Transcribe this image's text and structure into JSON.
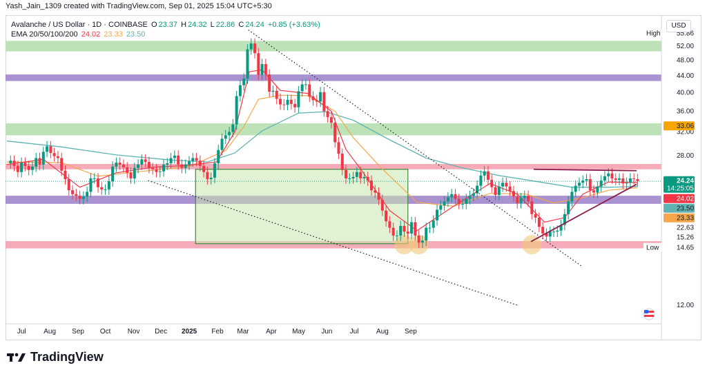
{
  "header": {
    "creator": "Yash_Jain_1309 created with TradingView.com, Sep 01, 2025 15:04 UTC+5:30"
  },
  "legend": {
    "symbol": "Avalanche / US Dollar · 1D · COINBASE",
    "o_label": "O",
    "o": "23.37",
    "h_label": "H",
    "h": "24.32",
    "l_label": "L",
    "l": "22.86",
    "c_label": "C",
    "c": "24.24",
    "change": "+0.85 (+3.63%)",
    "ema_label": "EMA 20/50/100/200",
    "ema20": "24.02",
    "ema50": "23.33",
    "ema100": "23.50"
  },
  "currency": "USD",
  "footer": {
    "brand": "TradingView"
  },
  "colors": {
    "up": "#089981",
    "down": "#f23645",
    "ema20": "#f23645",
    "ema50": "#f7a64b",
    "ema100": "#5fb3b3",
    "green_zone": "#b7dfb0",
    "purple_zone": "#9b7fc8",
    "pink_zone": "#f4a3b0",
    "range_box": "#c8e6b0",
    "trend": "#8b1a4a",
    "axis_text": "#131722"
  },
  "chart_data": {
    "type": "candlestick",
    "title": "Avalanche / US Dollar · 1D · COINBASE",
    "x_axis": {
      "ticks": [
        "Jul",
        "Aug",
        "Sep",
        "Oct",
        "Nov",
        "Dec",
        "2025",
        "Feb",
        "Mar",
        "Apr",
        "May",
        "Jun",
        "Jul",
        "Aug",
        "Sep"
      ],
      "bold": [
        "2025"
      ],
      "range": [
        "2024-06-24",
        "2025-09-12"
      ]
    },
    "y_axis": {
      "scale": "log",
      "range": [
        10.8,
        62
      ],
      "ticks": [
        12.0,
        32.0,
        36.0,
        40.0,
        44.0,
        48.0,
        52.0
      ],
      "tick_labels": [
        "12.00",
        "32.00",
        "36.00",
        "40.00",
        "44.00",
        "48.00",
        "52.00"
      ]
    },
    "price_labels": [
      {
        "label": "High",
        "value": "55.86",
        "kind": "high"
      },
      {
        "label": "",
        "value": "33.06",
        "kind": "ema200"
      },
      {
        "label": "",
        "value": "28.00",
        "kind": "tick"
      },
      {
        "label": "",
        "value": "24.24",
        "sub": "14:25:05",
        "kind": "last"
      },
      {
        "label": "",
        "value": "24.02",
        "kind": "ema20"
      },
      {
        "label": "",
        "value": "23.50",
        "kind": "ema100"
      },
      {
        "label": "",
        "value": "23.33",
        "kind": "ema50"
      },
      {
        "label": "",
        "value": "22.63",
        "kind": "plain"
      },
      {
        "label": "",
        "value": "15.26",
        "kind": "plain"
      },
      {
        "label": "Low",
        "value": "14.65",
        "kind": "low"
      }
    ],
    "zones": [
      {
        "kind": "green",
        "from": 50.5,
        "to": 53.6
      },
      {
        "kind": "purple",
        "from": 42.7,
        "to": 44.3
      },
      {
        "kind": "green",
        "from": 31.4,
        "to": 33.6
      },
      {
        "kind": "pink",
        "from": 25.9,
        "to": 26.7
      },
      {
        "kind": "purple",
        "from": 21.3,
        "to": 22.3
      },
      {
        "kind": "pink",
        "from": 16.55,
        "to": 17.25
      }
    ],
    "range_box": {
      "start": "2025-01-17",
      "end": "2025-09-07",
      "from": 17.0,
      "to": 25.9
    },
    "candles_close": [
      [
        0,
        26.8
      ],
      [
        4,
        27.2
      ],
      [
        8,
        26.4
      ],
      [
        12,
        25.5
      ],
      [
        16,
        26.9
      ],
      [
        20,
        26.4
      ],
      [
        24,
        25.8
      ],
      [
        28,
        26.3
      ],
      [
        32,
        27.6
      ],
      [
        36,
        26.6
      ],
      [
        40,
        28.6
      ],
      [
        44,
        29.5
      ],
      [
        48,
        28.4
      ],
      [
        52,
        27.9
      ],
      [
        56,
        27.6
      ],
      [
        60,
        25.7
      ],
      [
        64,
        24.5
      ],
      [
        68,
        23.0
      ],
      [
        72,
        22.5
      ],
      [
        76,
        22.3
      ],
      [
        80,
        21.9
      ],
      [
        84,
        22.2
      ],
      [
        88,
        22.8
      ],
      [
        92,
        24.6
      ],
      [
        96,
        24.6
      ],
      [
        100,
        23.4
      ],
      [
        104,
        23.1
      ],
      [
        108,
        23.1
      ],
      [
        112,
        24.2
      ],
      [
        116,
        26.3
      ],
      [
        120,
        26.9
      ],
      [
        124,
        26.6
      ],
      [
        128,
        26.2
      ],
      [
        132,
        25.4
      ],
      [
        136,
        24.6
      ],
      [
        140,
        26.1
      ],
      [
        144,
        26.6
      ],
      [
        148,
        27.4
      ],
      [
        152,
        27.0
      ],
      [
        156,
        26.1
      ],
      [
        160,
        25.9
      ],
      [
        164,
        25.5
      ],
      [
        168,
        25.6
      ],
      [
        172,
        26.6
      ],
      [
        176,
        26.8
      ],
      [
        180,
        27.6
      ],
      [
        184,
        28.0
      ],
      [
        188,
        26.6
      ],
      [
        192,
        26.1
      ],
      [
        196,
        26.6
      ],
      [
        200,
        27.1
      ],
      [
        204,
        27.6
      ],
      [
        208,
        27.2
      ],
      [
        212,
        26.4
      ],
      [
        216,
        25.5
      ],
      [
        220,
        24.5
      ],
      [
        224,
        24.7
      ],
      [
        228,
        26.8
      ],
      [
        232,
        28.9
      ],
      [
        236,
        30.8
      ],
      [
        240,
        31.4
      ],
      [
        244,
        32.0
      ],
      [
        248,
        33.4
      ],
      [
        252,
        39.2
      ],
      [
        256,
        41.7
      ],
      [
        260,
        43.3
      ],
      [
        264,
        51.1
      ],
      [
        268,
        52.8
      ],
      [
        272,
        50.0
      ],
      [
        276,
        44.2
      ],
      [
        280,
        47.0
      ],
      [
        284,
        44.3
      ],
      [
        288,
        40.2
      ],
      [
        292,
        40.4
      ],
      [
        296,
        38.6
      ],
      [
        300,
        37.4
      ],
      [
        304,
        37.3
      ],
      [
        308,
        38.4
      ],
      [
        312,
        37.5
      ],
      [
        316,
        36.8
      ],
      [
        320,
        40.3
      ],
      [
        324,
        41.9
      ],
      [
        328,
        41.9
      ],
      [
        332,
        39.1
      ],
      [
        336,
        38.3
      ],
      [
        340,
        38.0
      ],
      [
        344,
        40.1
      ],
      [
        348,
        36.0
      ],
      [
        352,
        34.8
      ],
      [
        356,
        33.7
      ],
      [
        360,
        30.2
      ],
      [
        364,
        28.3
      ],
      [
        368,
        25.8
      ],
      [
        372,
        24.6
      ],
      [
        376,
        24.6
      ],
      [
        380,
        24.8
      ],
      [
        384,
        25.5
      ],
      [
        388,
        24.6
      ],
      [
        392,
        24.8
      ],
      [
        396,
        24.3
      ],
      [
        400,
        23.0
      ],
      [
        404,
        22.7
      ],
      [
        408,
        21.8
      ],
      [
        412,
        20.5
      ],
      [
        416,
        19.3
      ],
      [
        420,
        18.6
      ],
      [
        424,
        17.8
      ],
      [
        428,
        17.8
      ],
      [
        432,
        18.8
      ],
      [
        436,
        18.2
      ],
      [
        440,
        18.0
      ],
      [
        444,
        19.2
      ],
      [
        448,
        17.8
      ],
      [
        452,
        17.1
      ],
      [
        456,
        17.3
      ],
      [
        460,
        18.6
      ],
      [
        464,
        18.6
      ],
      [
        468,
        19.4
      ],
      [
        472,
        20.6
      ],
      [
        476,
        21.1
      ],
      [
        480,
        21.6
      ],
      [
        484,
        22.1
      ],
      [
        488,
        22.5
      ],
      [
        492,
        21.9
      ],
      [
        496,
        21.3
      ],
      [
        500,
        21.3
      ],
      [
        504,
        21.9
      ],
      [
        508,
        22.3
      ],
      [
        512,
        22.6
      ],
      [
        516,
        23.6
      ],
      [
        520,
        25.0
      ],
      [
        524,
        25.6
      ],
      [
        528,
        24.4
      ],
      [
        532,
        23.4
      ],
      [
        536,
        22.4
      ],
      [
        540,
        23.5
      ],
      [
        544,
        24.0
      ],
      [
        548,
        23.5
      ],
      [
        552,
        22.9
      ],
      [
        556,
        22.2
      ],
      [
        560,
        21.4
      ],
      [
        564,
        22.0
      ],
      [
        568,
        22.3
      ],
      [
        572,
        21.6
      ],
      [
        576,
        20.1
      ],
      [
        580,
        19.7
      ],
      [
        584,
        18.7
      ],
      [
        588,
        18.0
      ],
      [
        592,
        17.7
      ],
      [
        596,
        18.2
      ],
      [
        600,
        18.2
      ],
      [
        604,
        18.3
      ],
      [
        608,
        18.9
      ],
      [
        612,
        20.1
      ],
      [
        616,
        21.6
      ],
      [
        620,
        22.8
      ],
      [
        624,
        23.6
      ],
      [
        628,
        24.0
      ],
      [
        632,
        24.3
      ],
      [
        636,
        24.5
      ],
      [
        640,
        23.0
      ],
      [
        644,
        22.7
      ],
      [
        648,
        23.5
      ],
      [
        652,
        24.3
      ],
      [
        656,
        24.9
      ],
      [
        660,
        25.3
      ],
      [
        664,
        24.6
      ],
      [
        668,
        24.4
      ],
      [
        672,
        24.6
      ],
      [
        676,
        23.9
      ],
      [
        680,
        24.0
      ],
      [
        684,
        24.6
      ],
      [
        688,
        24.5
      ],
      [
        692,
        24.2
      ]
    ],
    "ema20": [
      [
        0,
        26.6
      ],
      [
        40,
        27.4
      ],
      [
        80,
        23.4
      ],
      [
        120,
        25.4
      ],
      [
        160,
        26.2
      ],
      [
        200,
        26.5
      ],
      [
        230,
        27.0
      ],
      [
        250,
        32.0
      ],
      [
        266,
        45.0
      ],
      [
        280,
        45.5
      ],
      [
        300,
        40.5
      ],
      [
        330,
        39.8
      ],
      [
        356,
        36.0
      ],
      [
        372,
        29.0
      ],
      [
        390,
        25.6
      ],
      [
        420,
        20.5
      ],
      [
        450,
        18.3
      ],
      [
        490,
        21.0
      ],
      [
        530,
        23.9
      ],
      [
        560,
        22.5
      ],
      [
        590,
        19.2
      ],
      [
        612,
        19.7
      ],
      [
        632,
        22.5
      ],
      [
        660,
        24.1
      ],
      [
        692,
        24.02
      ]
    ],
    "ema50": [
      [
        0,
        27.0
      ],
      [
        60,
        26.9
      ],
      [
        100,
        24.9
      ],
      [
        140,
        25.5
      ],
      [
        200,
        26.3
      ],
      [
        240,
        28.8
      ],
      [
        260,
        33.0
      ],
      [
        276,
        38.5
      ],
      [
        300,
        39.4
      ],
      [
        330,
        39.3
      ],
      [
        360,
        36.0
      ],
      [
        380,
        31.0
      ],
      [
        410,
        26.2
      ],
      [
        450,
        21.5
      ],
      [
        490,
        21.0
      ],
      [
        530,
        22.6
      ],
      [
        570,
        22.5
      ],
      [
        600,
        21.4
      ],
      [
        630,
        22.0
      ],
      [
        660,
        23.0
      ],
      [
        692,
        23.33
      ]
    ],
    "ema100": [
      [
        0,
        30.4
      ],
      [
        60,
        29.4
      ],
      [
        120,
        28.1
      ],
      [
        180,
        27.3
      ],
      [
        220,
        27.0
      ],
      [
        250,
        28.4
      ],
      [
        280,
        32.2
      ],
      [
        320,
        35.6
      ],
      [
        350,
        35.9
      ],
      [
        380,
        34.2
      ],
      [
        420,
        30.6
      ],
      [
        460,
        27.6
      ],
      [
        500,
        26.1
      ],
      [
        540,
        25.0
      ],
      [
        580,
        24.2
      ],
      [
        620,
        23.4
      ],
      [
        660,
        23.4
      ],
      [
        692,
        23.5
      ]
    ],
    "trendlines": [
      {
        "name": "",
        "style": "dotted",
        "from": [
          265,
          57.0
        ],
        "to": [
          630,
          15.0
        ]
      },
      {
        "name": "",
        "style": "dotted",
        "from": [
          155,
          24.3
        ],
        "to": [
          560,
          12.0
        ]
      },
      {
        "name": "",
        "style": "solid",
        "from": [
          575,
          17.2
        ],
        "to": [
          691,
          23.8
        ]
      },
      {
        "name": "",
        "style": "solid",
        "from": [
          578,
          25.9
        ],
        "to": [
          691,
          25.7
        ]
      }
    ],
    "circles_at": [
      [
        436,
        16.9
      ],
      [
        452,
        16.9
      ],
      [
        576,
        16.9
      ]
    ]
  }
}
